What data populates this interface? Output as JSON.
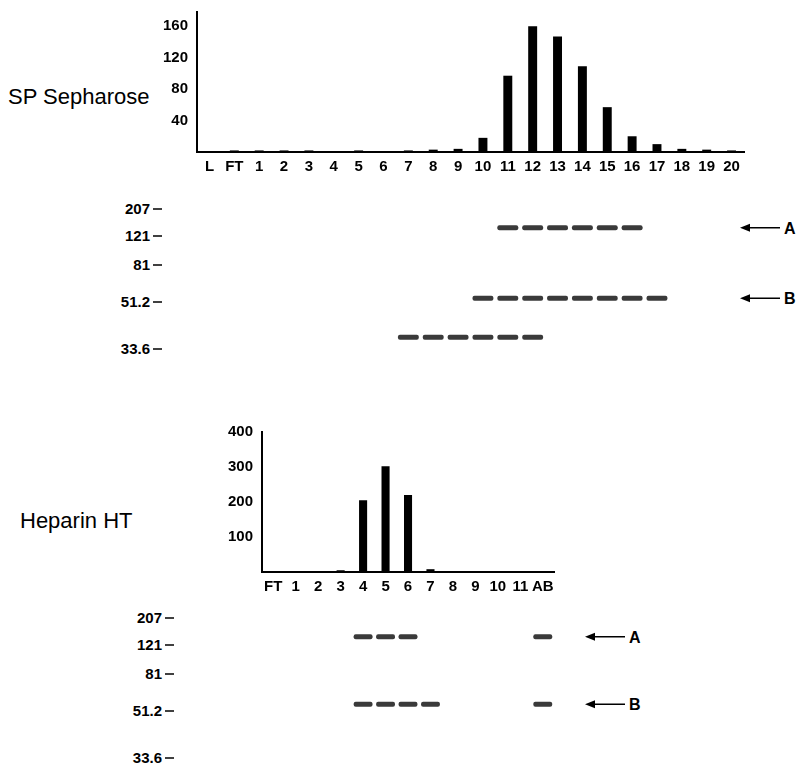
{
  "chart_data": [
    {
      "type": "bar",
      "title": "SP Sepharose",
      "categories": [
        "L",
        "FT",
        "1",
        "2",
        "3",
        "4",
        "5",
        "6",
        "7",
        "8",
        "9",
        "10",
        "11",
        "12",
        "13",
        "14",
        "15",
        "16",
        "17",
        "18",
        "19",
        "20"
      ],
      "values": [
        null,
        2,
        2,
        2,
        2,
        1,
        2,
        1,
        2,
        3,
        4,
        18,
        97,
        160,
        147,
        109,
        57,
        20,
        10,
        4,
        3,
        2
      ],
      "color": "#000000",
      "ylim": [
        0,
        178
      ],
      "yticks": [
        40,
        80,
        120,
        160
      ],
      "grid": false
    },
    {
      "type": "bar",
      "title": "Heparin HT",
      "categories": [
        "FT",
        "1",
        "2",
        "3",
        "4",
        "5",
        "6",
        "7",
        "8",
        "9",
        "10",
        "11",
        "AB"
      ],
      "values": [
        1,
        1,
        1,
        5,
        205,
        302,
        220,
        8,
        1,
        1,
        1,
        1,
        null
      ],
      "color": "#000000",
      "ylim": [
        0,
        400
      ],
      "yticks": [
        100,
        200,
        300,
        400
      ],
      "grid": false
    }
  ],
  "gels": [
    {
      "markers": [
        207,
        121,
        81,
        51.2,
        33.6
      ],
      "bands": [
        {
          "label": "A",
          "mw": 140,
          "lanes": [
            "11",
            "12",
            "13",
            "14",
            "15",
            "16"
          ]
        },
        {
          "label": "B",
          "mw": 53,
          "lanes": [
            "10",
            "11",
            "12",
            "13",
            "14",
            "15",
            "16",
            "17"
          ]
        },
        {
          "mw": 37,
          "lanes": [
            "7",
            "8",
            "9",
            "10",
            "11",
            "12"
          ]
        }
      ]
    },
    {
      "markers": [
        207,
        121,
        81,
        51.2,
        33.6
      ],
      "bands": [
        {
          "label": "A",
          "mw": 140,
          "lanes": [
            "4",
            "5",
            "6",
            "AB"
          ]
        },
        {
          "label": "B",
          "mw": 55,
          "lanes": [
            "4",
            "5",
            "6",
            "7",
            "AB"
          ]
        }
      ]
    }
  ]
}
